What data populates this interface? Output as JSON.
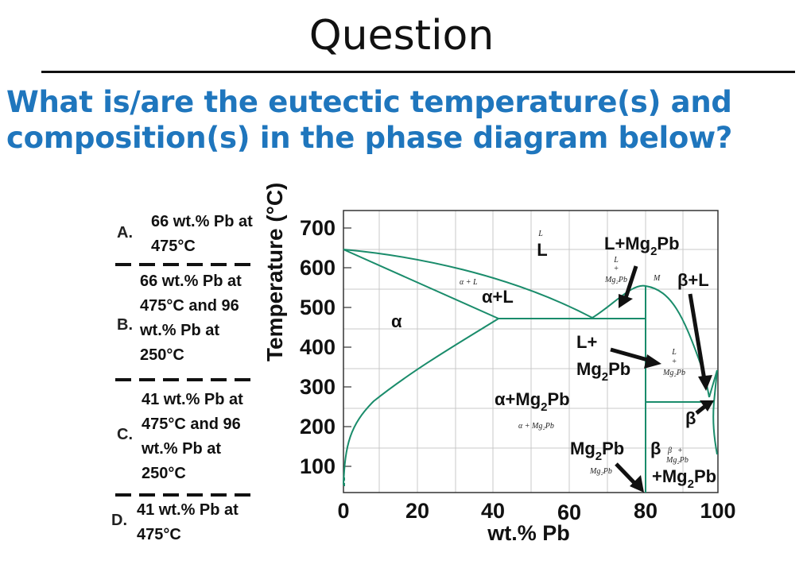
{
  "slide": {
    "title": "Question",
    "question_line1": "What is/are the eutectic temperature(s) and",
    "question_line2": "composition(s) in the phase diagram below?"
  },
  "options": [
    {
      "letter": "A.",
      "lines": [
        "66 wt.% Pb at",
        "475°C"
      ]
    },
    {
      "letter": "B.",
      "lines": [
        "66 wt.% Pb at",
        "475°C and 96",
        "wt.% Pb at",
        "250°C"
      ]
    },
    {
      "letter": "C.",
      "lines": [
        "41 wt.% Pb at",
        "475°C and 96",
        "wt.% Pb at",
        "250°C"
      ]
    },
    {
      "letter": "D.",
      "lines": [
        "41 wt.% Pb at",
        "475°C"
      ]
    }
  ],
  "diagram": {
    "ylabel": "Temperature (°C)",
    "xlabel": "wt.% Pb",
    "yticks": [
      "700",
      "600",
      "500",
      "400",
      "300",
      "200",
      "100"
    ],
    "xticks": [
      "0",
      "20",
      "40",
      "60",
      "80",
      "100"
    ],
    "region_labels": {
      "L_small": "L",
      "L": "L",
      "L_Mg2Pb_top": "L+Mg",
      "L_Mg2Pb_top_sub": "2",
      "L_Mg2Pb_top_end": "Pb",
      "beta_L": "β+L",
      "alpha_L": "α+L",
      "alpha_L_small": "α + L",
      "alpha": "α",
      "L_plus": "L+",
      "Mg2Pb_a": "Mg",
      "Mg2Pb_sub": "2",
      "Mg2Pb_b": "Pb",
      "alpha_Mg2Pb_a": "α+Mg",
      "alpha_Mg2Pb_b": "Pb",
      "alpha_Mg2Pb_small": "α + Mg₂Pb",
      "Mg2Pb_label_a": "Mg",
      "Mg2Pb_label_b": "Pb",
      "Mg2Pb_small": "Mg₂Pb",
      "beta": "β",
      "beta_Mg2Pb": "+Mg",
      "beta_Mg2Pb_end": "Pb",
      "beta_small": "β",
      "M": "M"
    },
    "line_color": "#1a8c6b"
  }
}
